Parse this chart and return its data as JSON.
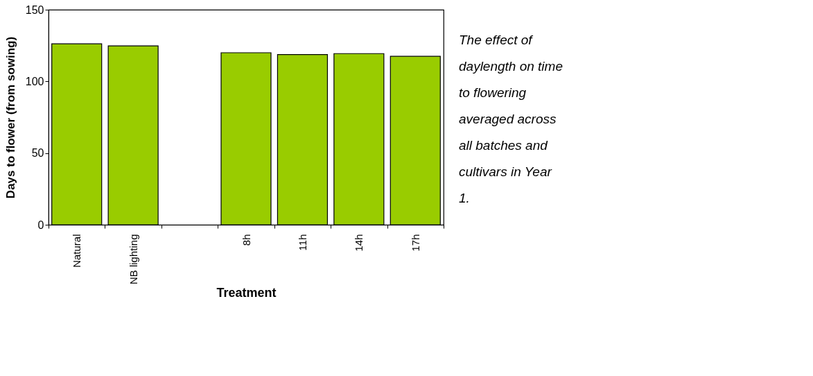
{
  "chart_data": {
    "type": "bar",
    "xlabel": "Treatment",
    "ylabel": "Days to flower (from sowing)",
    "categories": [
      "Natural",
      "NB lighting",
      null,
      "8h",
      "11h",
      "14h",
      "17h"
    ],
    "values": [
      126.2,
      124.8,
      null,
      120,
      118.7,
      119.4,
      117.5
    ],
    "color": "#99cc00",
    "ylim": [
      0,
      150
    ],
    "yticks": [
      0,
      50,
      100,
      150
    ],
    "grid": false,
    "annotations": [
      "The effect of daylength on time to flowering averaged across all batches and cultivars in Year 1."
    ]
  }
}
